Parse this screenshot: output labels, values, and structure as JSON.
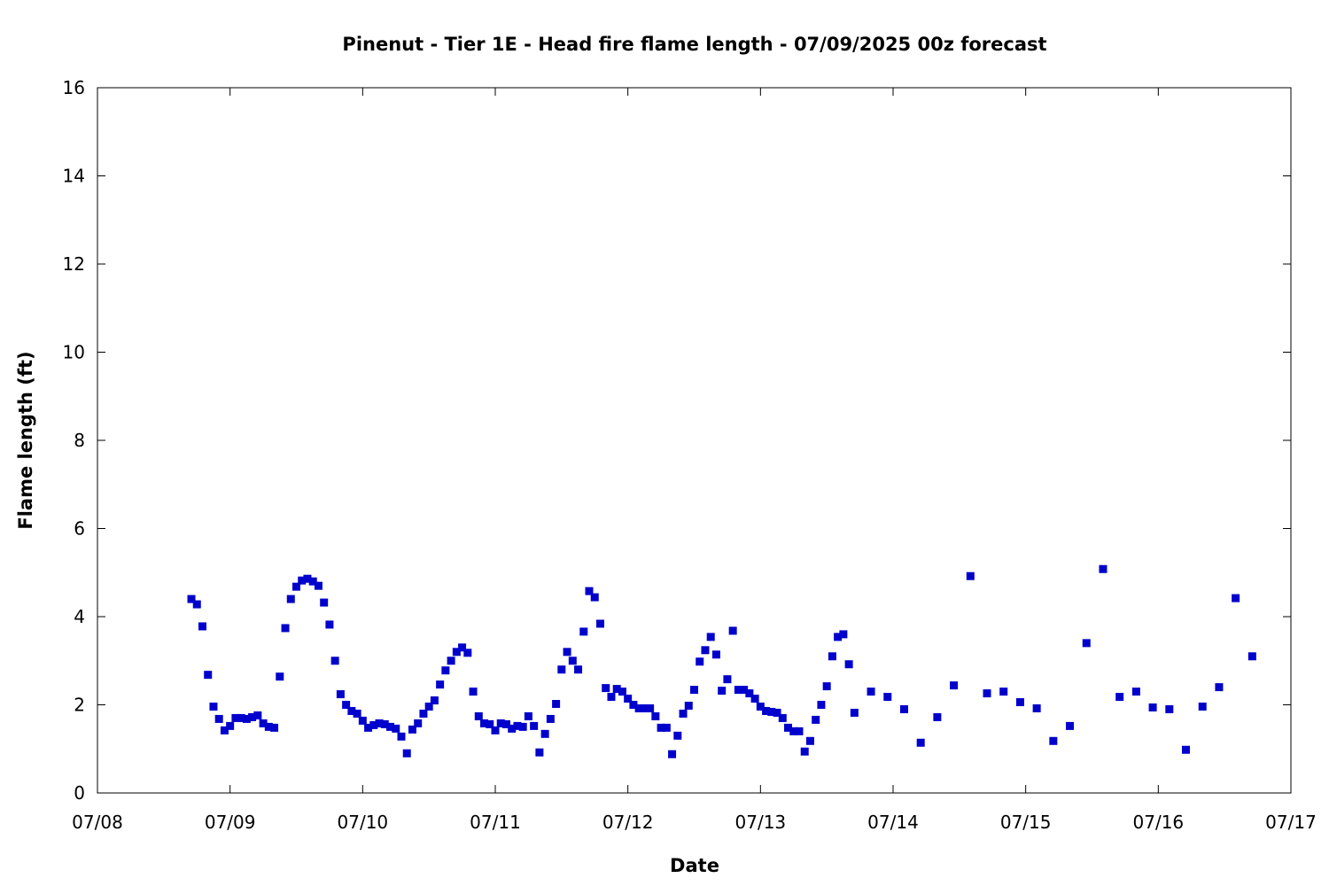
{
  "chart_data": {
    "type": "scatter",
    "title": "Pinenut - Tier 1E - Head fire flame length - 07/09/2025 00z forecast",
    "xlabel": "Date",
    "ylabel": "Flame length (ft)",
    "x_axis": {
      "kind": "date",
      "range": [
        "2025-07-08",
        "2025-07-17"
      ],
      "tick_labels": [
        "07/08",
        "07/09",
        "07/10",
        "07/11",
        "07/12",
        "07/13",
        "07/14",
        "07/15",
        "07/16",
        "07/17"
      ]
    },
    "y_axis": {
      "range": [
        0,
        16
      ],
      "tick_labels": [
        "0",
        "2",
        "4",
        "6",
        "8",
        "10",
        "12",
        "14",
        "16"
      ]
    },
    "grid": false,
    "legend": "none",
    "marker_color": "#0000cc",
    "series": [
      {
        "points": [
          [
            "2025-07-08 17:00",
            4.4
          ],
          [
            "2025-07-08 18:00",
            4.28
          ],
          [
            "2025-07-08 19:00",
            3.78
          ],
          [
            "2025-07-08 20:00",
            2.68
          ],
          [
            "2025-07-08 21:00",
            1.96
          ],
          [
            "2025-07-08 22:00",
            1.68
          ],
          [
            "2025-07-08 23:00",
            1.42
          ],
          [
            "2025-07-09 00:00",
            1.52
          ],
          [
            "2025-07-09 01:00",
            1.7
          ],
          [
            "2025-07-09 02:00",
            1.7
          ],
          [
            "2025-07-09 03:00",
            1.68
          ],
          [
            "2025-07-09 04:00",
            1.72
          ],
          [
            "2025-07-09 05:00",
            1.76
          ],
          [
            "2025-07-09 06:00",
            1.58
          ],
          [
            "2025-07-09 07:00",
            1.5
          ],
          [
            "2025-07-09 08:00",
            1.48
          ],
          [
            "2025-07-09 09:00",
            2.64
          ],
          [
            "2025-07-09 10:00",
            3.74
          ],
          [
            "2025-07-09 11:00",
            4.4
          ],
          [
            "2025-07-09 12:00",
            4.68
          ],
          [
            "2025-07-09 13:00",
            4.82
          ],
          [
            "2025-07-09 14:00",
            4.86
          ],
          [
            "2025-07-09 15:00",
            4.8
          ],
          [
            "2025-07-09 16:00",
            4.7
          ],
          [
            "2025-07-09 17:00",
            4.32
          ],
          [
            "2025-07-09 18:00",
            3.82
          ],
          [
            "2025-07-09 19:00",
            3.0
          ],
          [
            "2025-07-09 20:00",
            2.24
          ],
          [
            "2025-07-09 21:00",
            2.0
          ],
          [
            "2025-07-09 22:00",
            1.86
          ],
          [
            "2025-07-09 23:00",
            1.8
          ],
          [
            "2025-07-10 00:00",
            1.64
          ],
          [
            "2025-07-10 01:00",
            1.48
          ],
          [
            "2025-07-10 02:00",
            1.54
          ],
          [
            "2025-07-10 03:00",
            1.58
          ],
          [
            "2025-07-10 04:00",
            1.56
          ],
          [
            "2025-07-10 05:00",
            1.5
          ],
          [
            "2025-07-10 06:00",
            1.46
          ],
          [
            "2025-07-10 07:00",
            1.28
          ],
          [
            "2025-07-10 08:00",
            0.9
          ],
          [
            "2025-07-10 09:00",
            1.44
          ],
          [
            "2025-07-10 10:00",
            1.58
          ],
          [
            "2025-07-10 11:00",
            1.8
          ],
          [
            "2025-07-10 12:00",
            1.96
          ],
          [
            "2025-07-10 13:00",
            2.1
          ],
          [
            "2025-07-10 14:00",
            2.46
          ],
          [
            "2025-07-10 15:00",
            2.78
          ],
          [
            "2025-07-10 16:00",
            3.0
          ],
          [
            "2025-07-10 17:00",
            3.2
          ],
          [
            "2025-07-10 18:00",
            3.3
          ],
          [
            "2025-07-10 19:00",
            3.18
          ],
          [
            "2025-07-10 20:00",
            2.3
          ],
          [
            "2025-07-10 21:00",
            1.74
          ],
          [
            "2025-07-10 22:00",
            1.58
          ],
          [
            "2025-07-10 23:00",
            1.56
          ],
          [
            "2025-07-11 00:00",
            1.42
          ],
          [
            "2025-07-11 01:00",
            1.58
          ],
          [
            "2025-07-11 02:00",
            1.56
          ],
          [
            "2025-07-11 03:00",
            1.46
          ],
          [
            "2025-07-11 04:00",
            1.52
          ],
          [
            "2025-07-11 05:00",
            1.5
          ],
          [
            "2025-07-11 06:00",
            1.74
          ],
          [
            "2025-07-11 07:00",
            1.52
          ],
          [
            "2025-07-11 08:00",
            0.92
          ],
          [
            "2025-07-11 09:00",
            1.34
          ],
          [
            "2025-07-11 10:00",
            1.68
          ],
          [
            "2025-07-11 11:00",
            2.02
          ],
          [
            "2025-07-11 12:00",
            2.8
          ],
          [
            "2025-07-11 13:00",
            3.2
          ],
          [
            "2025-07-11 14:00",
            3.0
          ],
          [
            "2025-07-11 15:00",
            2.8
          ],
          [
            "2025-07-11 16:00",
            3.66
          ],
          [
            "2025-07-11 17:00",
            4.58
          ],
          [
            "2025-07-11 18:00",
            4.44
          ],
          [
            "2025-07-11 19:00",
            3.84
          ],
          [
            "2025-07-11 20:00",
            2.38
          ],
          [
            "2025-07-11 21:00",
            2.18
          ],
          [
            "2025-07-11 22:00",
            2.36
          ],
          [
            "2025-07-11 23:00",
            2.3
          ],
          [
            "2025-07-12 00:00",
            2.14
          ],
          [
            "2025-07-12 01:00",
            2.0
          ],
          [
            "2025-07-12 02:00",
            1.92
          ],
          [
            "2025-07-12 03:00",
            1.92
          ],
          [
            "2025-07-12 04:00",
            1.92
          ],
          [
            "2025-07-12 05:00",
            1.74
          ],
          [
            "2025-07-12 06:00",
            1.48
          ],
          [
            "2025-07-12 07:00",
            1.48
          ],
          [
            "2025-07-12 08:00",
            0.88
          ],
          [
            "2025-07-12 09:00",
            1.3
          ],
          [
            "2025-07-12 10:00",
            1.8
          ],
          [
            "2025-07-12 11:00",
            1.98
          ],
          [
            "2025-07-12 12:00",
            2.34
          ],
          [
            "2025-07-12 13:00",
            2.98
          ],
          [
            "2025-07-12 14:00",
            3.24
          ],
          [
            "2025-07-12 15:00",
            3.54
          ],
          [
            "2025-07-12 16:00",
            3.14
          ],
          [
            "2025-07-12 17:00",
            2.32
          ],
          [
            "2025-07-12 18:00",
            2.58
          ],
          [
            "2025-07-12 19:00",
            3.68
          ],
          [
            "2025-07-12 20:00",
            2.34
          ],
          [
            "2025-07-12 21:00",
            2.34
          ],
          [
            "2025-07-12 22:00",
            2.26
          ],
          [
            "2025-07-12 23:00",
            2.14
          ],
          [
            "2025-07-13 00:00",
            1.96
          ],
          [
            "2025-07-13 01:00",
            1.86
          ],
          [
            "2025-07-13 02:00",
            1.84
          ],
          [
            "2025-07-13 03:00",
            1.82
          ],
          [
            "2025-07-13 04:00",
            1.7
          ],
          [
            "2025-07-13 05:00",
            1.48
          ],
          [
            "2025-07-13 06:00",
            1.4
          ],
          [
            "2025-07-13 07:00",
            1.4
          ],
          [
            "2025-07-13 08:00",
            0.94
          ],
          [
            "2025-07-13 09:00",
            1.18
          ],
          [
            "2025-07-13 10:00",
            1.66
          ],
          [
            "2025-07-13 11:00",
            2.0
          ],
          [
            "2025-07-13 12:00",
            2.42
          ],
          [
            "2025-07-13 13:00",
            3.1
          ],
          [
            "2025-07-13 14:00",
            3.54
          ],
          [
            "2025-07-13 15:00",
            3.6
          ],
          [
            "2025-07-13 16:00",
            2.92
          ],
          [
            "2025-07-13 17:00",
            1.82
          ],
          [
            "2025-07-13 20:00",
            2.3
          ],
          [
            "2025-07-13 23:00",
            2.18
          ],
          [
            "2025-07-14 02:00",
            1.9
          ],
          [
            "2025-07-14 05:00",
            1.14
          ],
          [
            "2025-07-14 08:00",
            1.72
          ],
          [
            "2025-07-14 11:00",
            2.44
          ],
          [
            "2025-07-14 14:00",
            4.92
          ],
          [
            "2025-07-14 17:00",
            2.26
          ],
          [
            "2025-07-14 20:00",
            2.3
          ],
          [
            "2025-07-14 23:00",
            2.06
          ],
          [
            "2025-07-15 02:00",
            1.92
          ],
          [
            "2025-07-15 05:00",
            1.18
          ],
          [
            "2025-07-15 08:00",
            1.52
          ],
          [
            "2025-07-15 11:00",
            3.4
          ],
          [
            "2025-07-15 14:00",
            5.08
          ],
          [
            "2025-07-15 17:00",
            2.18
          ],
          [
            "2025-07-15 20:00",
            2.3
          ],
          [
            "2025-07-15 23:00",
            1.94
          ],
          [
            "2025-07-16 02:00",
            1.9
          ],
          [
            "2025-07-16 05:00",
            0.98
          ],
          [
            "2025-07-16 08:00",
            1.96
          ],
          [
            "2025-07-16 11:00",
            2.4
          ],
          [
            "2025-07-16 14:00",
            4.42
          ],
          [
            "2025-07-16 17:00",
            3.1
          ]
        ]
      }
    ]
  }
}
